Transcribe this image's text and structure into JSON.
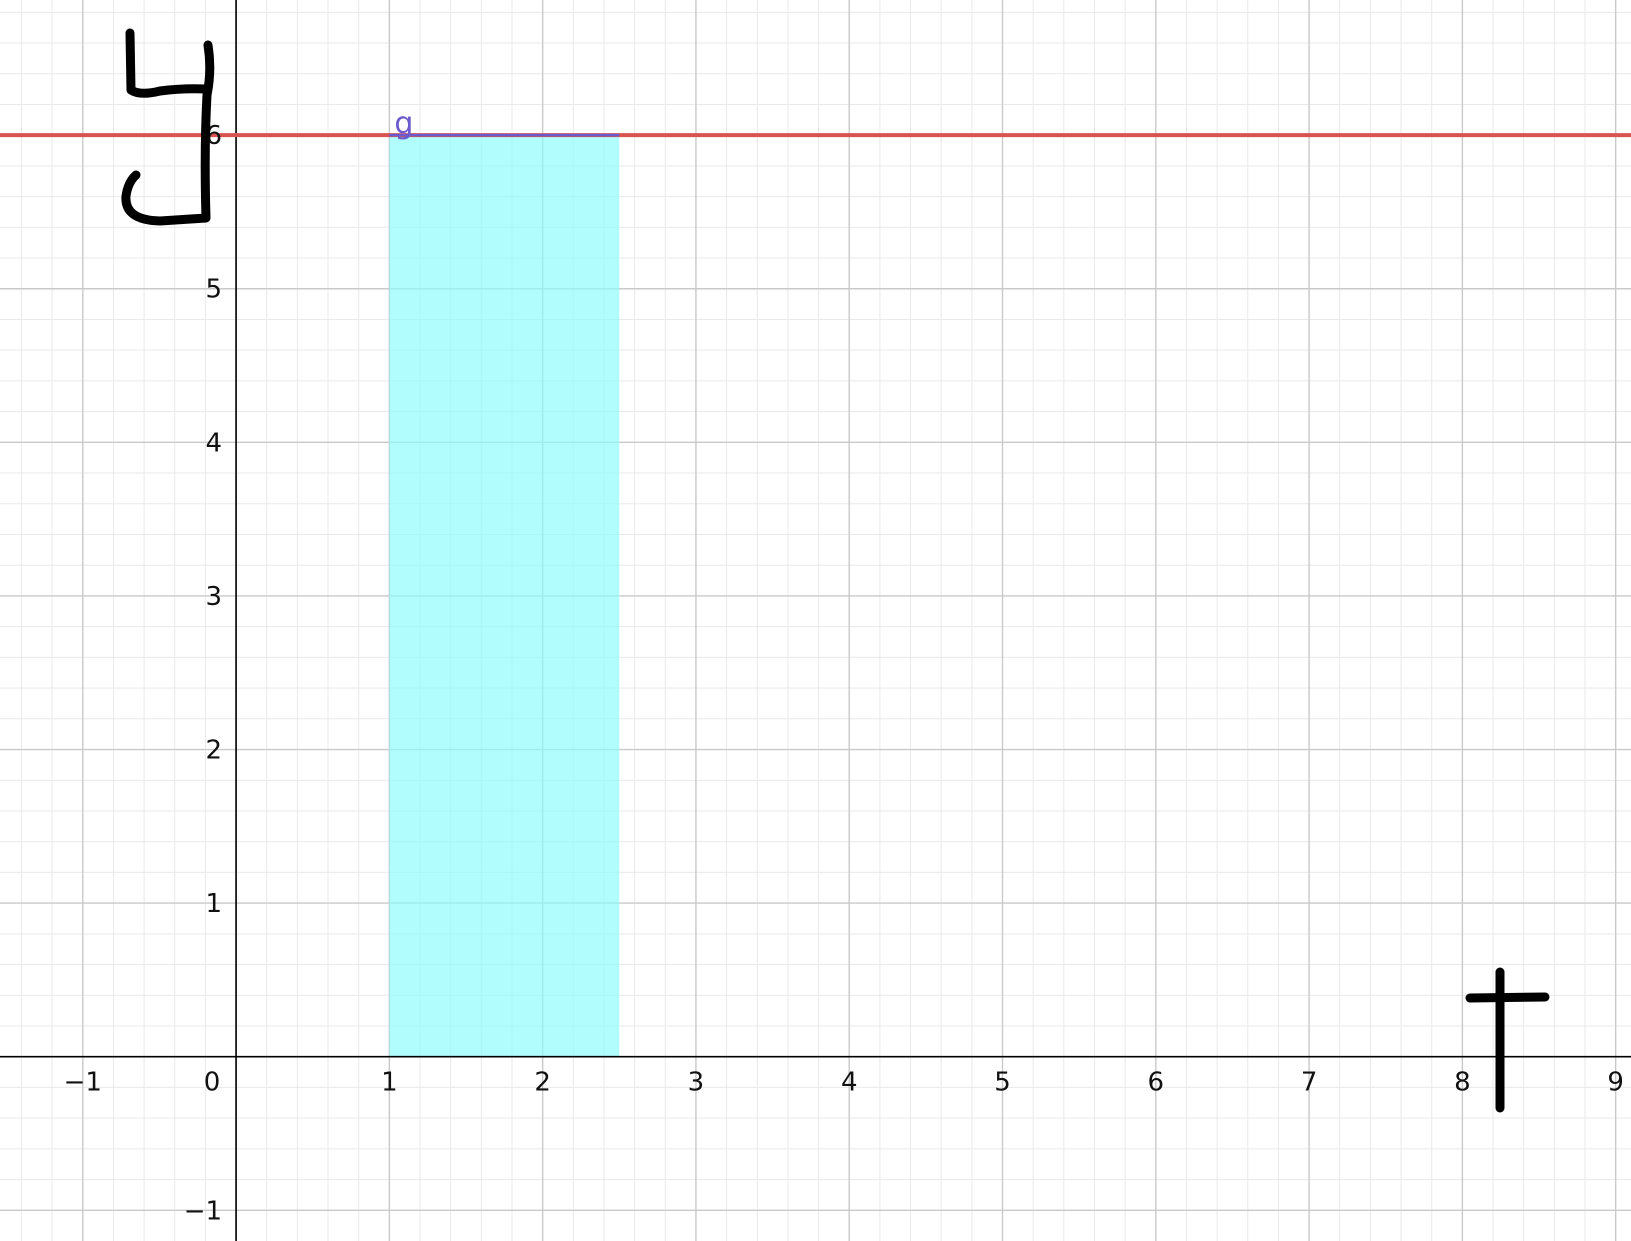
{
  "chart_data": {
    "type": "area",
    "title": "",
    "xlabel": "t",
    "ylabel": "y",
    "xlim": [
      -1.54,
      9.1
    ],
    "ylim": [
      -1.2,
      6.88
    ],
    "grid": true,
    "minor_grid_divisions": 5,
    "x_ticks": [
      "−1",
      "0",
      "1",
      "2",
      "3",
      "4",
      "5",
      "6",
      "7",
      "8",
      "9"
    ],
    "y_ticks": [
      "−1",
      "1",
      "2",
      "3",
      "4",
      "5",
      "6"
    ],
    "origin_label": "0",
    "series": [
      {
        "name": "",
        "kind": "line",
        "equation_y": 6,
        "color": "#d9534f"
      },
      {
        "name": "",
        "kind": "segment",
        "x": [
          1,
          2.5
        ],
        "y": [
          6,
          6
        ],
        "label": "g",
        "color": "#6a5acd"
      },
      {
        "name": "",
        "kind": "shaded-region",
        "x": [
          1,
          2.5
        ],
        "y": [
          0,
          6
        ],
        "color": "#8cfcfc"
      }
    ],
    "annotations": [
      "y",
      "t"
    ]
  }
}
